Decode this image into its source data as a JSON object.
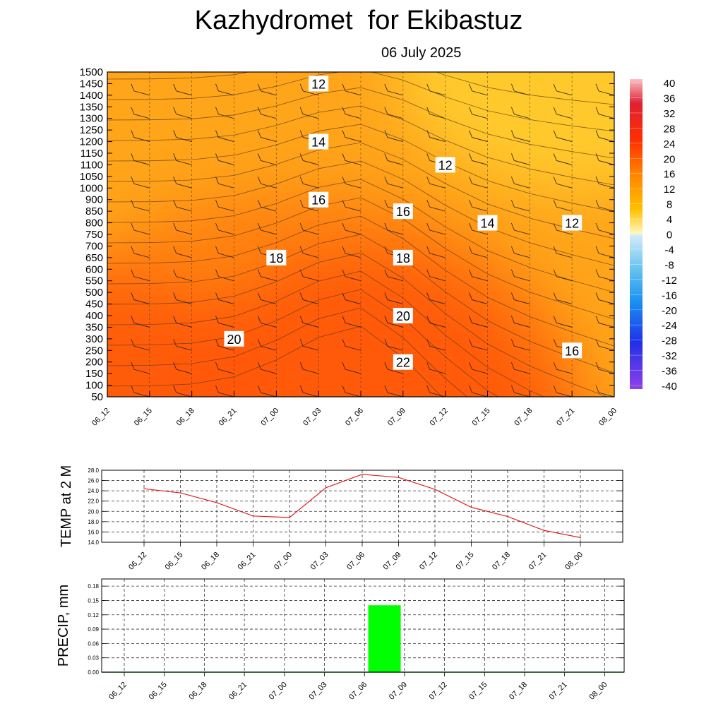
{
  "title": "Kazhydromet  for Ekibastuz",
  "date": "06 July 2025",
  "chart_data": [
    {
      "type": "heatmap",
      "title": "Kazhydromet  for Ekibastuz",
      "subtitle": "06 July 2025",
      "x_ticks": [
        "06_12",
        "06_15",
        "06_18",
        "06_21",
        "07_00",
        "07_03",
        "07_06",
        "07_09",
        "07_12",
        "07_15",
        "07_18",
        "07_21",
        "08_00"
      ],
      "y_ticks": [
        1500,
        1450,
        1400,
        1350,
        1300,
        1250,
        1200,
        1150,
        1100,
        1050,
        1000,
        900,
        850,
        800,
        750,
        700,
        650,
        600,
        550,
        500,
        450,
        400,
        350,
        300,
        250,
        200,
        150,
        100,
        50
      ],
      "colorbar_ticks": [
        40,
        36,
        32,
        28,
        24,
        20,
        16,
        12,
        8,
        4,
        0,
        -4,
        -8,
        -12,
        -16,
        -20,
        -24,
        -28,
        -32,
        -36,
        -40
      ],
      "contour_labels": [
        {
          "text": "12",
          "x": "07_03",
          "level": 1450
        },
        {
          "text": "14",
          "x": "07_03",
          "level": 1200
        },
        {
          "text": "16",
          "x": "07_03",
          "level": 900
        },
        {
          "text": "18",
          "x": "07_00",
          "level": 650
        },
        {
          "text": "20",
          "x": "06_21",
          "level": 300
        },
        {
          "text": "12",
          "x": "07_12",
          "level": 1100
        },
        {
          "text": "16",
          "x": "07_09",
          "level": 850
        },
        {
          "text": "14",
          "x": "07_15",
          "level": 800
        },
        {
          "text": "18",
          "x": "07_09",
          "level": 650
        },
        {
          "text": "20",
          "x": "07_09",
          "level": 400
        },
        {
          "text": "22",
          "x": "07_09",
          "level": 200
        },
        {
          "text": "12",
          "x": "07_21",
          "level": 800
        },
        {
          "text": "16",
          "x": "07_21",
          "level": 250
        }
      ]
    },
    {
      "type": "line",
      "ylabel": "TEMP at 2 M",
      "ylim": [
        14.0,
        28.0
      ],
      "y_ticks": [
        "28.0",
        "26.0",
        "24.0",
        "22.0",
        "20.0",
        "18.0",
        "16.0",
        "14.0"
      ],
      "categories": [
        "06_12",
        "06_15",
        "06_18",
        "06_21",
        "07_00",
        "07_03",
        "07_06",
        "07_09",
        "07_12",
        "07_15",
        "07_18",
        "07_21",
        "08_00"
      ],
      "values": [
        24.4,
        23.6,
        21.7,
        19.1,
        18.8,
        24.6,
        27.2,
        26.6,
        24.3,
        20.8,
        19.0,
        16.3,
        14.9
      ],
      "color": "#e02020"
    },
    {
      "type": "bar",
      "ylabel": "PRECIP, mm",
      "ylim": [
        0.0,
        0.195
      ],
      "y_ticks": [
        "0.18",
        "0.15",
        "0.12",
        "0.09",
        "0.06",
        "0.03",
        "0.00"
      ],
      "categories": [
        "06_12",
        "06_15",
        "06_18",
        "06_21",
        "07_00",
        "07_03",
        "07_06",
        "07_09",
        "07_12",
        "07_15",
        "07_18",
        "07_21",
        "08_00"
      ],
      "values": [
        0,
        0,
        0,
        0,
        0,
        0,
        0,
        0.14,
        0,
        0,
        0,
        0,
        0
      ],
      "color": "#00ff00"
    }
  ]
}
